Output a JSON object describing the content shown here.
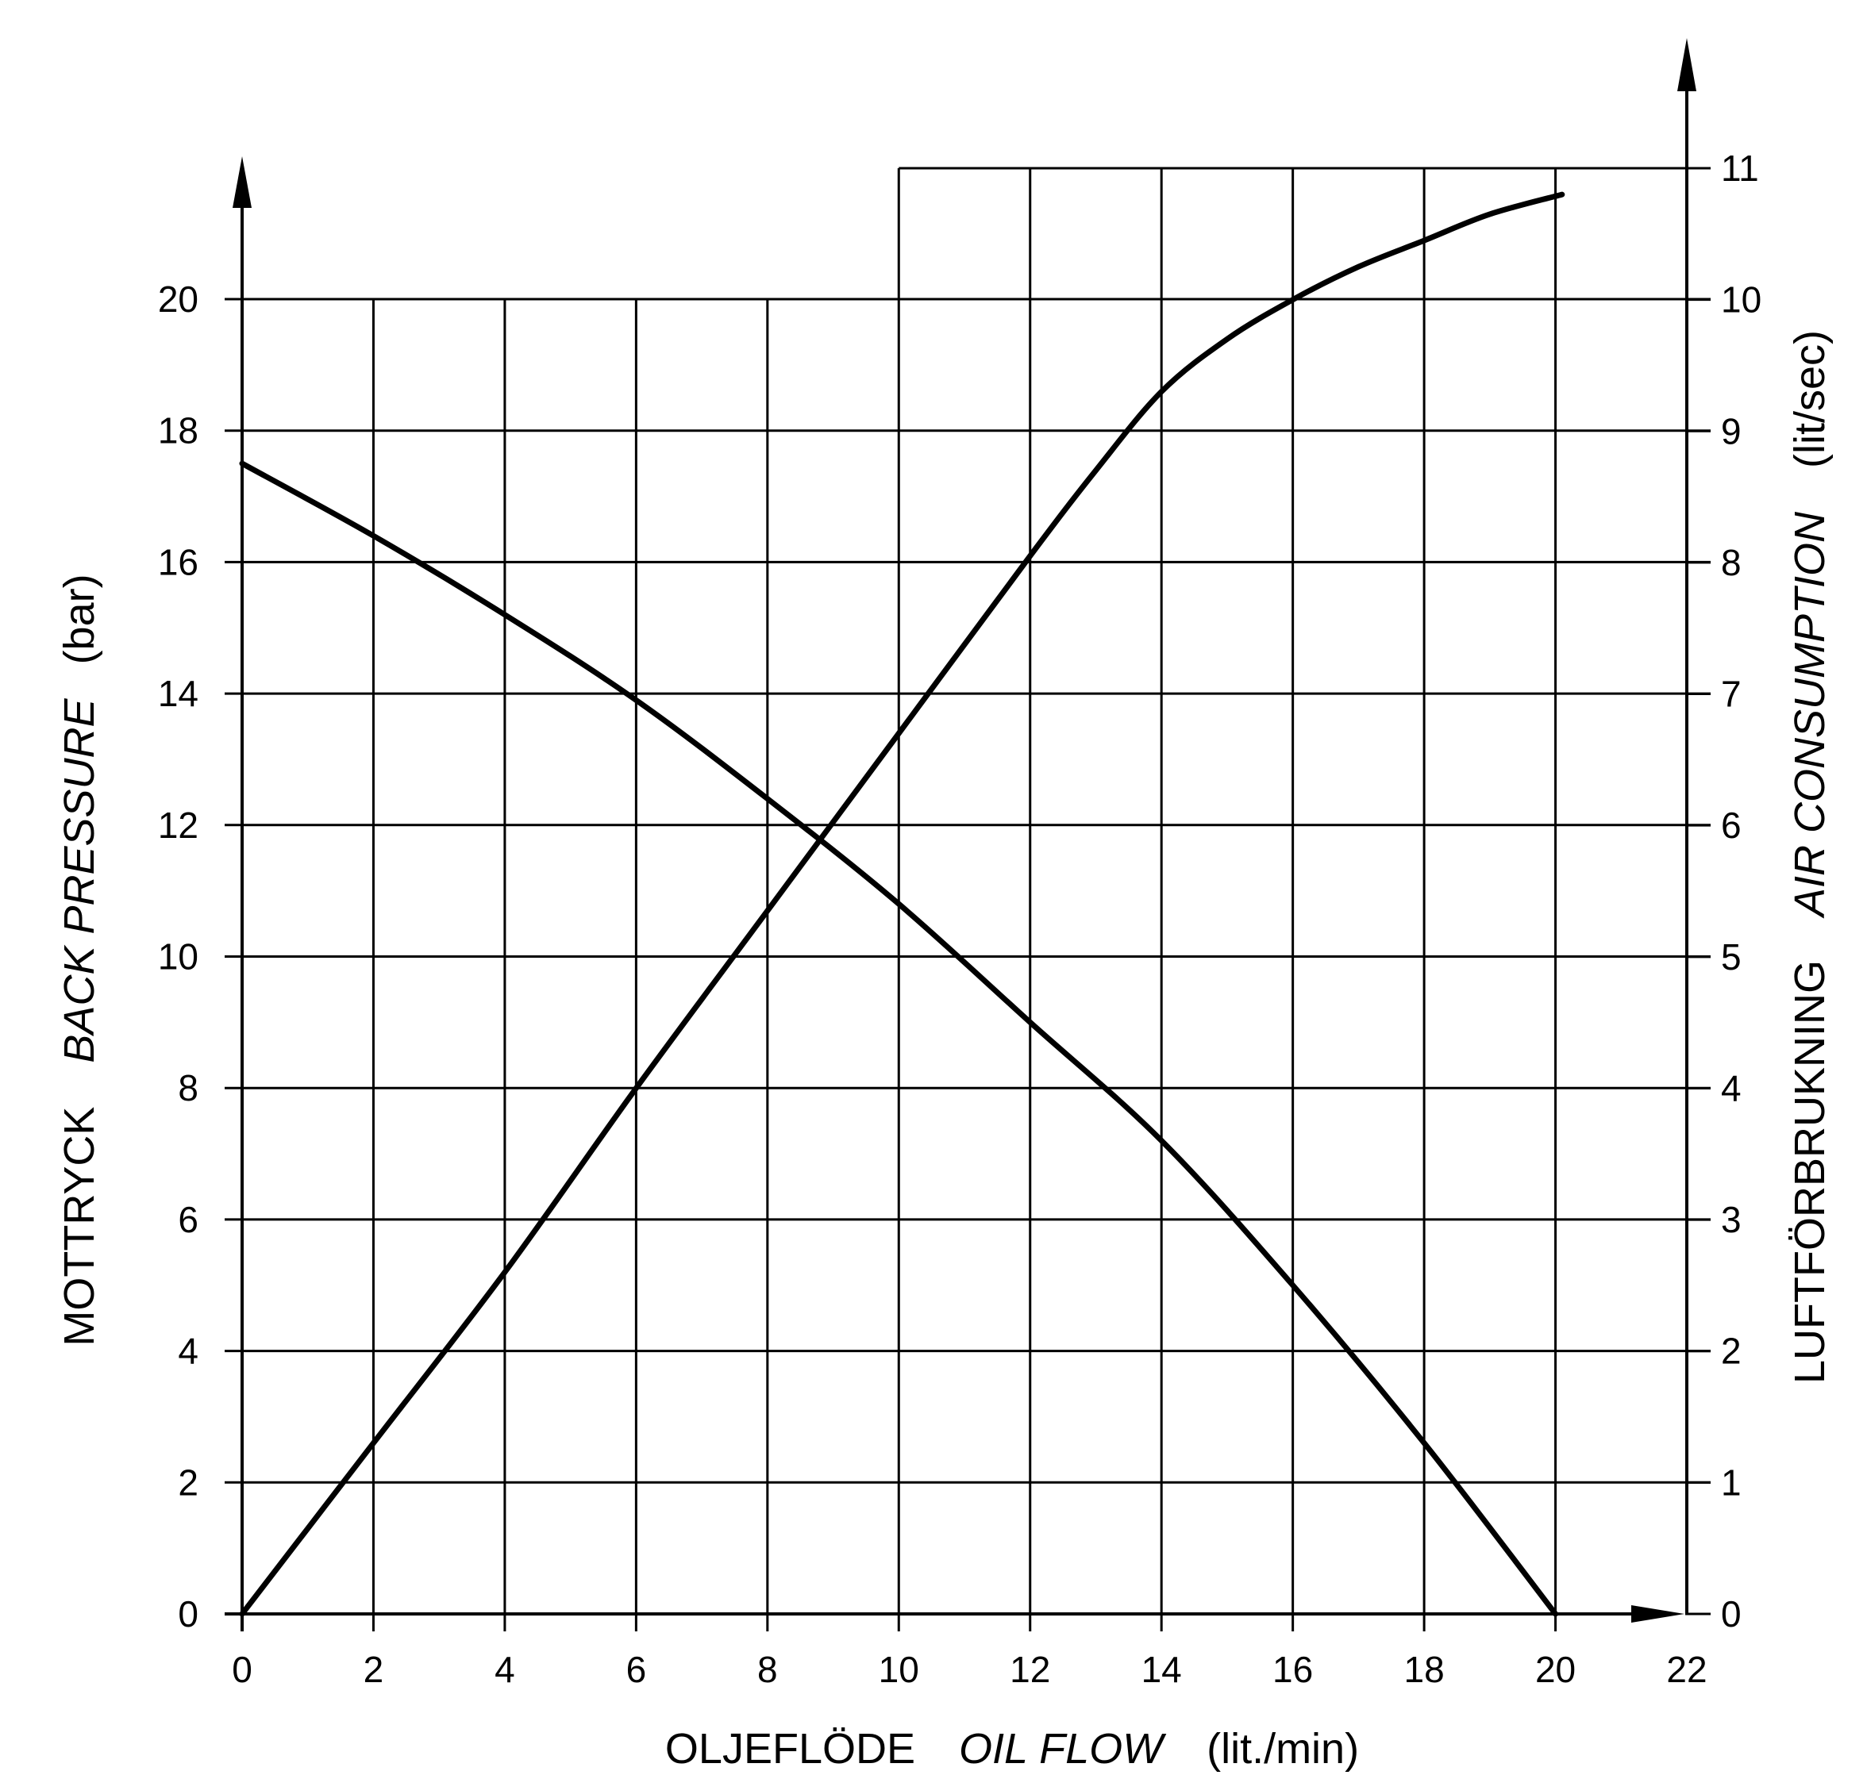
{
  "chart_data": {
    "type": "line",
    "title": "",
    "x_axis": {
      "label_sv": "OLJEFLÖDE",
      "label_en": "OIL FLOW",
      "unit": "(lit./min)",
      "range": [
        0,
        22
      ],
      "ticks": [
        "0",
        "2",
        "4",
        "6",
        "8",
        "10",
        "12",
        "14",
        "16",
        "18",
        "20",
        "22"
      ]
    },
    "y_left": {
      "label_sv": "MOTTRYCK",
      "label_en": "BACK PRESSURE",
      "unit": "(bar)",
      "range": [
        0,
        20
      ],
      "ticks": [
        "0",
        "2",
        "4",
        "6",
        "8",
        "10",
        "12",
        "14",
        "16",
        "18",
        "20"
      ]
    },
    "y_right": {
      "label_sv": "LUFTFÖRBRUKNING",
      "label_en": "AIR CONSUMPTION",
      "unit": "(lit/sec)",
      "range": [
        0,
        11
      ],
      "ticks": [
        "0",
        "1",
        "2",
        "3",
        "4",
        "5",
        "6",
        "7",
        "8",
        "9",
        "10",
        "11"
      ]
    },
    "grid": true,
    "series": [
      {
        "axis": "left",
        "x": [
          0,
          2,
          4,
          6,
          8,
          10,
          12,
          14,
          16,
          18,
          20
        ],
        "y": [
          17.5,
          16.4,
          15.2,
          13.9,
          12.4,
          10.8,
          9.0,
          7.2,
          5.0,
          2.6,
          0
        ]
      },
      {
        "axis": "right",
        "x": [
          0,
          2,
          4,
          6,
          8,
          10,
          12,
          13,
          14,
          15,
          16,
          17,
          18,
          19,
          20.1
        ],
        "y": [
          0,
          1.3,
          2.6,
          4.0,
          5.35,
          6.7,
          8.05,
          8.7,
          9.3,
          9.7,
          10.0,
          10.25,
          10.45,
          10.65,
          10.8
        ]
      }
    ]
  }
}
